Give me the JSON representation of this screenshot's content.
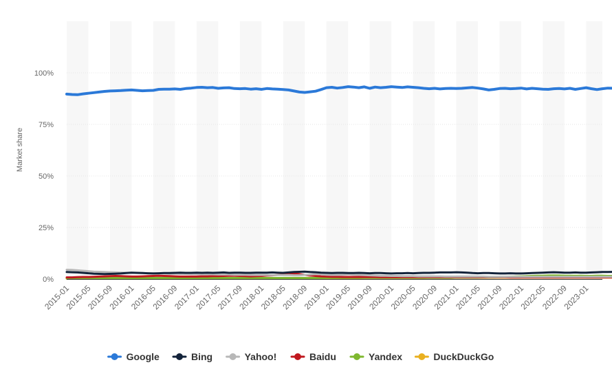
{
  "chart_data": {
    "type": "line",
    "xlabel": "",
    "ylabel": "Market share",
    "y_unit": "%",
    "ylim": [
      0,
      125
    ],
    "yticks": [
      0,
      25,
      50,
      75,
      100
    ],
    "ytick_labels": [
      "0%",
      "25%",
      "50%",
      "75%",
      "100%"
    ],
    "x_start": "2015-01",
    "x_end": "2023-04",
    "x_tick_labels": [
      "2015-01",
      "2015-05",
      "2015-09",
      "2016-01",
      "2016-05",
      "2016-09",
      "2017-01",
      "2017-05",
      "2017-09",
      "2018-01",
      "2018-05",
      "2018-09",
      "2019-01",
      "2019-05",
      "2019-09",
      "2020-01",
      "2020-05",
      "2020-09",
      "2021-01",
      "2021-05",
      "2021-09",
      "2022-01",
      "2022-05",
      "2022-09",
      "2023-01"
    ],
    "grid": "alternating vertical bands",
    "legend_position": "bottom",
    "series": [
      {
        "name": "Google",
        "color": "#2b79d8",
        "values": [
          89.7,
          89.5,
          89.4,
          89.8,
          90.1,
          90.4,
          90.7,
          91.0,
          91.2,
          91.3,
          91.4,
          91.6,
          91.7,
          91.5,
          91.3,
          91.4,
          91.5,
          92.0,
          92.1,
          92.1,
          92.2,
          92.0,
          92.4,
          92.6,
          92.9,
          93.0,
          92.8,
          92.9,
          92.5,
          92.7,
          92.8,
          92.4,
          92.3,
          92.4,
          92.1,
          92.3,
          92.0,
          92.4,
          92.2,
          92.1,
          91.9,
          91.7,
          91.2,
          90.7,
          90.5,
          90.8,
          91.1,
          91.9,
          92.8,
          93.0,
          92.6,
          92.9,
          93.3,
          93.1,
          92.8,
          93.2,
          92.5,
          93.1,
          92.8,
          93.0,
          93.3,
          93.1,
          92.9,
          93.2,
          93.0,
          92.8,
          92.5,
          92.3,
          92.5,
          92.2,
          92.4,
          92.5,
          92.4,
          92.5,
          92.7,
          92.9,
          92.6,
          92.2,
          91.7,
          92.0,
          92.4,
          92.5,
          92.3,
          92.4,
          92.6,
          92.2,
          92.5,
          92.3,
          92.1,
          92.0,
          92.3,
          92.4,
          92.2,
          92.5,
          92.0,
          92.4,
          92.8,
          92.3,
          91.9,
          92.3,
          92.6,
          92.5,
          92.8,
          93.3,
          93.2,
          92.8
        ]
      },
      {
        "name": "Bing",
        "color": "#13233a",
        "values": [
          3.4,
          3.3,
          3.2,
          3.0,
          2.8,
          2.6,
          2.5,
          2.4,
          2.5,
          2.6,
          2.7,
          2.9,
          3.1,
          3.0,
          2.9,
          2.8,
          2.7,
          2.8,
          2.9,
          2.9,
          3.0,
          3.1,
          3.0,
          3.0,
          3.1,
          3.0,
          3.1,
          3.0,
          3.1,
          3.2,
          3.0,
          3.1,
          3.1,
          3.0,
          3.0,
          3.1,
          3.1,
          3.1,
          3.2,
          3.1,
          3.0,
          3.2,
          3.4,
          3.5,
          3.6,
          3.4,
          3.3,
          3.1,
          3.0,
          2.9,
          3.0,
          3.0,
          2.9,
          2.9,
          3.0,
          2.9,
          2.8,
          2.9,
          2.9,
          2.8,
          2.7,
          2.8,
          2.8,
          2.9,
          2.8,
          2.9,
          3.0,
          3.0,
          3.1,
          3.2,
          3.2,
          3.2,
          3.3,
          3.2,
          3.1,
          2.9,
          2.8,
          2.9,
          2.9,
          2.8,
          2.7,
          2.7,
          2.8,
          2.7,
          2.7,
          2.8,
          2.9,
          3.0,
          3.1,
          3.2,
          3.3,
          3.2,
          3.1,
          3.1,
          3.2,
          3.1,
          3.1,
          3.2,
          3.3,
          3.4,
          3.4,
          3.5,
          3.4,
          3.3,
          3.2,
          3.2
        ]
      },
      {
        "name": "Yahoo!",
        "color": "#b8b8b8",
        "values": [
          4.5,
          4.4,
          4.2,
          4.0,
          3.8,
          3.6,
          3.5,
          3.4,
          3.3,
          3.2,
          3.1,
          3.0,
          3.0,
          2.9,
          2.9,
          2.8,
          2.8,
          2.7,
          2.7,
          2.6,
          2.6,
          2.5,
          2.5,
          2.4,
          2.4,
          2.3,
          2.3,
          2.3,
          2.2,
          2.2,
          2.2,
          2.1,
          2.1,
          2.1,
          2.0,
          2.0,
          2.0,
          2.0,
          1.9,
          1.9,
          1.9,
          1.9,
          1.8,
          1.8,
          2.0,
          2.2,
          2.4,
          2.3,
          2.1,
          2.0,
          2.0,
          2.1,
          2.3,
          2.1,
          2.0,
          1.9,
          1.8,
          1.7,
          1.6,
          1.6,
          1.5,
          1.5,
          1.4,
          1.4,
          1.4,
          1.3,
          1.3,
          1.3,
          1.3,
          1.3,
          1.2,
          1.2,
          1.2,
          1.2,
          1.2,
          1.2,
          1.2,
          1.2,
          1.1,
          1.1,
          1.1,
          1.1,
          1.1,
          1.1,
          1.1,
          1.1,
          1.1,
          1.1,
          1.1,
          1.1,
          1.1,
          1.1,
          1.1,
          1.1,
          1.1,
          1.1,
          1.1,
          1.1,
          1.1,
          1.1,
          1.1,
          1.1,
          1.1,
          1.1,
          1.1,
          1.1
        ]
      },
      {
        "name": "Baidu",
        "color": "#c0181f",
        "values": [
          0.8,
          0.8,
          0.9,
          1.0,
          1.0,
          1.1,
          1.2,
          1.3,
          1.4,
          1.5,
          1.4,
          1.3,
          1.2,
          1.2,
          1.3,
          1.4,
          1.5,
          1.6,
          1.5,
          1.4,
          1.3,
          1.2,
          1.2,
          1.2,
          1.2,
          1.3,
          1.3,
          1.4,
          1.4,
          1.5,
          1.6,
          1.6,
          1.5,
          1.4,
          1.3,
          1.4,
          1.5,
          1.7,
          1.8,
          2.0,
          2.2,
          2.5,
          2.6,
          2.4,
          2.0,
          1.7,
          1.5,
          1.3,
          1.2,
          1.1,
          1.1,
          1.0,
          1.0,
          1.0,
          1.0,
          1.0,
          1.0,
          1.0,
          0.9,
          0.9,
          0.9,
          0.9,
          0.9,
          0.9,
          0.9,
          0.9,
          0.9,
          0.9,
          0.9,
          0.9,
          0.9,
          0.9,
          0.9,
          0.9,
          0.9,
          0.9,
          0.9,
          0.9,
          0.9,
          0.9,
          0.9,
          0.9,
          0.8,
          0.8,
          0.8,
          0.8,
          0.8,
          0.8,
          0.8,
          0.8,
          0.8,
          0.8,
          0.8,
          0.8,
          0.8,
          0.8,
          0.8,
          0.8,
          0.8,
          0.8,
          0.8,
          0.8,
          0.8,
          0.8,
          0.8,
          0.8
        ]
      },
      {
        "name": "Yandex",
        "color": "#7fb82f",
        "values": [
          0.5,
          0.5,
          0.5,
          0.5,
          0.5,
          0.5,
          0.5,
          0.5,
          0.5,
          0.5,
          0.5,
          0.5,
          0.5,
          0.5,
          0.5,
          0.5,
          0.5,
          0.5,
          0.5,
          0.5,
          0.5,
          0.5,
          0.5,
          0.5,
          0.5,
          0.5,
          0.5,
          0.5,
          0.5,
          0.5,
          0.5,
          0.5,
          0.5,
          0.5,
          0.5,
          0.5,
          0.5,
          0.5,
          0.5,
          0.5,
          0.5,
          0.5,
          0.5,
          0.5,
          0.5,
          0.5,
          0.5,
          0.5,
          0.6,
          0.6,
          0.6,
          0.6,
          0.6,
          0.6,
          0.6,
          0.6,
          0.6,
          0.6,
          0.6,
          0.6,
          0.6,
          0.6,
          0.6,
          0.6,
          0.6,
          0.6,
          0.6,
          0.6,
          0.6,
          0.6,
          0.6,
          0.6,
          0.7,
          0.7,
          0.7,
          0.7,
          0.7,
          0.8,
          0.8,
          0.8,
          0.9,
          1.0,
          1.1,
          1.2,
          1.3,
          1.4,
          1.5,
          1.6,
          1.6,
          1.7,
          1.7,
          1.7,
          1.6,
          1.6,
          1.6,
          1.6,
          1.5,
          1.5,
          1.6,
          1.6,
          1.5,
          1.5,
          1.5,
          1.6,
          1.6,
          1.6
        ]
      },
      {
        "name": "DuckDuckGo",
        "color": "#e9b020",
        "values": [
          0.2,
          0.2,
          0.2,
          0.3,
          0.3,
          0.3,
          0.3,
          0.3,
          0.3,
          0.3,
          0.3,
          0.3,
          0.3,
          0.3,
          0.3,
          0.3,
          0.3,
          0.3,
          0.3,
          0.3,
          0.4,
          0.4,
          0.4,
          0.4,
          0.4,
          0.4,
          0.4,
          0.4,
          0.4,
          0.4,
          0.4,
          0.4,
          0.4,
          0.5,
          0.5,
          0.5,
          0.5,
          0.5,
          0.5,
          0.5,
          0.5,
          0.5,
          0.5,
          0.5,
          0.5,
          0.5,
          0.5,
          0.5,
          0.5,
          0.5,
          0.5,
          0.5,
          0.5,
          0.5,
          0.5,
          0.6,
          0.6,
          0.6,
          0.6,
          0.6,
          0.6,
          0.6,
          0.6,
          0.6,
          0.6,
          0.6,
          0.6,
          0.7,
          0.7,
          0.7,
          0.7,
          0.7,
          0.7,
          0.7,
          0.7,
          0.7,
          0.7,
          0.7,
          0.7,
          0.7,
          0.7,
          0.7,
          0.7,
          0.7,
          0.7,
          0.7,
          0.7,
          0.7,
          0.7,
          0.7,
          0.7,
          0.7,
          0.7,
          0.7,
          0.7,
          0.7,
          0.7,
          0.7,
          0.7,
          0.7,
          0.7,
          0.7,
          0.7,
          0.7,
          0.7,
          0.7
        ]
      }
    ]
  }
}
